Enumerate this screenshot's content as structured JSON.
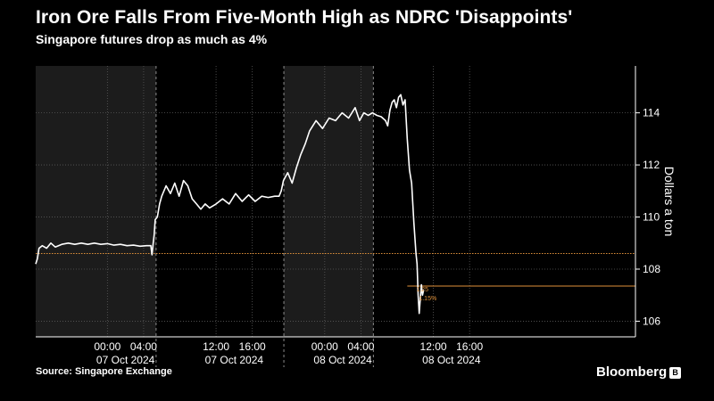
{
  "chart_data": {
    "type": "line",
    "title": "Iron Ore Falls From Five-Month High as NDRC 'Disappoints'",
    "subtitle": "Singapore futures drop as much as 4%",
    "ylabel": "Dollars a ton",
    "source": "Source: Singapore Exchange",
    "brand": "Bloomberg",
    "ylim": [
      105.4,
      115.8
    ],
    "y_ticks": [
      106,
      108,
      110,
      112,
      114
    ],
    "xlim": [
      -0.33,
      2.43
    ],
    "x_ticks": [
      {
        "x": 0.0,
        "label": "00:00"
      },
      {
        "x": 0.1667,
        "label": "04:00"
      },
      {
        "x": 0.5,
        "label": "12:00"
      },
      {
        "x": 0.6667,
        "label": "16:00"
      },
      {
        "x": 1.0,
        "label": "00:00"
      },
      {
        "x": 1.1667,
        "label": "04:00"
      },
      {
        "x": 1.5,
        "label": "12:00"
      },
      {
        "x": 1.6667,
        "label": "16:00"
      }
    ],
    "date_labels": [
      {
        "x": 0.0833,
        "label": "07 Oct 2024"
      },
      {
        "x": 0.5833,
        "label": "07 Oct 2024"
      },
      {
        "x": 1.0833,
        "label": "08 Oct 2024"
      },
      {
        "x": 1.5833,
        "label": "08 Oct 2024"
      }
    ],
    "sessions": [
      {
        "start": -0.33,
        "end": 0.224
      },
      {
        "start": 0.224,
        "end": 0.812
      },
      {
        "start": 0.812,
        "end": 1.224
      },
      {
        "start": 1.224,
        "end": 2.43
      }
    ],
    "grid": true,
    "reference_line": {
      "value": 108.6,
      "color": "#e0913a"
    },
    "level_line": {
      "value": 107.35,
      "x_start": 1.38,
      "color": "#e0913a"
    },
    "annotations": [
      "1.25",
      "1.15%"
    ],
    "line_color": "#ffffff",
    "series": [
      {
        "points": [
          [
            -0.33,
            108.2
          ],
          [
            -0.322,
            108.4
          ],
          [
            -0.315,
            108.8
          ],
          [
            -0.3,
            108.9
          ],
          [
            -0.28,
            108.8
          ],
          [
            -0.26,
            109.0
          ],
          [
            -0.24,
            108.85
          ],
          [
            -0.21,
            108.95
          ],
          [
            -0.18,
            109.0
          ],
          [
            -0.15,
            108.95
          ],
          [
            -0.12,
            109.0
          ],
          [
            -0.09,
            108.95
          ],
          [
            -0.06,
            109.0
          ],
          [
            -0.03,
            108.95
          ],
          [
            0.0,
            108.98
          ],
          [
            0.03,
            108.92
          ],
          [
            0.06,
            108.95
          ],
          [
            0.09,
            108.9
          ],
          [
            0.12,
            108.92
          ],
          [
            0.15,
            108.88
          ],
          [
            0.18,
            108.9
          ],
          [
            0.2,
            108.9
          ],
          [
            0.205,
            108.55
          ],
          [
            0.21,
            108.95
          ],
          [
            0.215,
            109.3
          ],
          [
            0.22,
            109.9
          ],
          [
            0.23,
            110.0
          ],
          [
            0.24,
            110.5
          ],
          [
            0.25,
            110.8
          ],
          [
            0.27,
            111.2
          ],
          [
            0.29,
            110.9
          ],
          [
            0.31,
            111.3
          ],
          [
            0.33,
            110.8
          ],
          [
            0.35,
            111.4
          ],
          [
            0.37,
            111.2
          ],
          [
            0.39,
            110.7
          ],
          [
            0.41,
            110.5
          ],
          [
            0.43,
            110.3
          ],
          [
            0.45,
            110.5
          ],
          [
            0.47,
            110.35
          ],
          [
            0.5,
            110.5
          ],
          [
            0.53,
            110.7
          ],
          [
            0.56,
            110.5
          ],
          [
            0.59,
            110.9
          ],
          [
            0.62,
            110.6
          ],
          [
            0.65,
            110.85
          ],
          [
            0.68,
            110.6
          ],
          [
            0.71,
            110.8
          ],
          [
            0.74,
            110.75
          ],
          [
            0.77,
            110.8
          ],
          [
            0.79,
            110.8
          ],
          [
            0.8,
            111.0
          ],
          [
            0.81,
            111.4
          ],
          [
            0.83,
            111.7
          ],
          [
            0.85,
            111.3
          ],
          [
            0.87,
            111.9
          ],
          [
            0.89,
            112.4
          ],
          [
            0.91,
            112.8
          ],
          [
            0.93,
            113.3
          ],
          [
            0.96,
            113.7
          ],
          [
            0.99,
            113.4
          ],
          [
            1.02,
            113.8
          ],
          [
            1.05,
            113.7
          ],
          [
            1.08,
            114.0
          ],
          [
            1.11,
            113.8
          ],
          [
            1.14,
            114.2
          ],
          [
            1.16,
            113.7
          ],
          [
            1.18,
            114.0
          ],
          [
            1.2,
            113.9
          ],
          [
            1.22,
            114.0
          ],
          [
            1.24,
            113.9
          ],
          [
            1.26,
            113.85
          ],
          [
            1.28,
            113.7
          ],
          [
            1.29,
            113.5
          ],
          [
            1.3,
            114.1
          ],
          [
            1.31,
            114.4
          ],
          [
            1.32,
            114.5
          ],
          [
            1.33,
            114.2
          ],
          [
            1.34,
            114.6
          ],
          [
            1.35,
            114.7
          ],
          [
            1.36,
            114.3
          ],
          [
            1.37,
            114.5
          ],
          [
            1.38,
            113.0
          ],
          [
            1.39,
            111.8
          ],
          [
            1.4,
            111.3
          ],
          [
            1.41,
            109.8
          ],
          [
            1.42,
            108.6
          ],
          [
            1.425,
            108.2
          ],
          [
            1.43,
            107.0
          ],
          [
            1.435,
            106.3
          ],
          [
            1.44,
            106.9
          ],
          [
            1.445,
            107.4
          ],
          [
            1.45,
            107.0
          ],
          [
            1.455,
            107.2
          ]
        ]
      }
    ]
  }
}
